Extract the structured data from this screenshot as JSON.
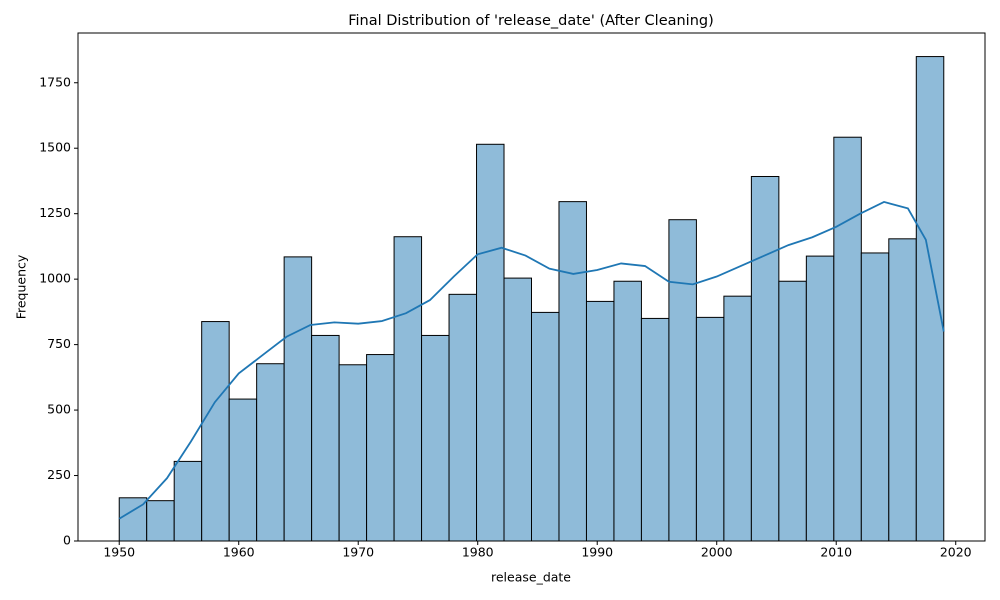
{
  "chart_data": {
    "type": "histogram",
    "title": "Final Distribution of 'release_date' (After Cleaning)",
    "x_label": "release_date",
    "y_label": "Frequency",
    "bins": [
      1950,
      1952.3,
      1954.6,
      1956.9,
      1959.2,
      1961.5,
      1963.8,
      1966.1,
      1968.4,
      1970.7,
      1973,
      1975.3,
      1977.6,
      1979.9,
      1982.2,
      1984.5,
      1986.8,
      1989.1,
      1991.4,
      1993.7,
      1996,
      1998.3,
      2000.6,
      2002.9,
      2005.2,
      2007.5,
      2009.8,
      2012.1,
      2014.4,
      2016.7,
      2019
    ],
    "values": [
      165,
      154,
      304,
      838,
      542,
      677,
      1085,
      785,
      673,
      712,
      1162,
      785,
      942,
      1515,
      1004,
      873,
      1296,
      915,
      992,
      850,
      1227,
      854,
      935,
      1392,
      992,
      1088,
      1542,
      1100,
      1154,
      1850
    ],
    "color": "#8fbbd9",
    "edgecolor": "#000000",
    "kde": {
      "color": "#1f77b4",
      "x": [
        1950,
        1952,
        1954,
        1956,
        1958,
        1960,
        1962,
        1964,
        1966,
        1968,
        1970,
        1972,
        1974,
        1976,
        1978,
        1980,
        1982,
        1984,
        1986,
        1988,
        1990,
        1992,
        1994,
        1996,
        1998,
        2000,
        2002,
        2004,
        2006,
        2008,
        2010,
        2012,
        2014,
        2016,
        2017.5,
        2019
      ],
      "values": [
        85,
        140,
        240,
        380,
        530,
        640,
        710,
        780,
        825,
        835,
        830,
        840,
        870,
        920,
        1010,
        1095,
        1120,
        1090,
        1040,
        1020,
        1035,
        1060,
        1050,
        990,
        980,
        1010,
        1050,
        1090,
        1130,
        1160,
        1200,
        1250,
        1295,
        1270,
        1150,
        800
      ]
    },
    "xlim": [
      1946.55,
      2022.45
    ],
    "ylim": [
      0,
      1940
    ],
    "xticks": [
      1950,
      1960,
      1970,
      1980,
      1990,
      2000,
      2010,
      2020
    ],
    "yticks": [
      0,
      250,
      500,
      750,
      1000,
      1250,
      1500,
      1750
    ],
    "grid": false
  }
}
